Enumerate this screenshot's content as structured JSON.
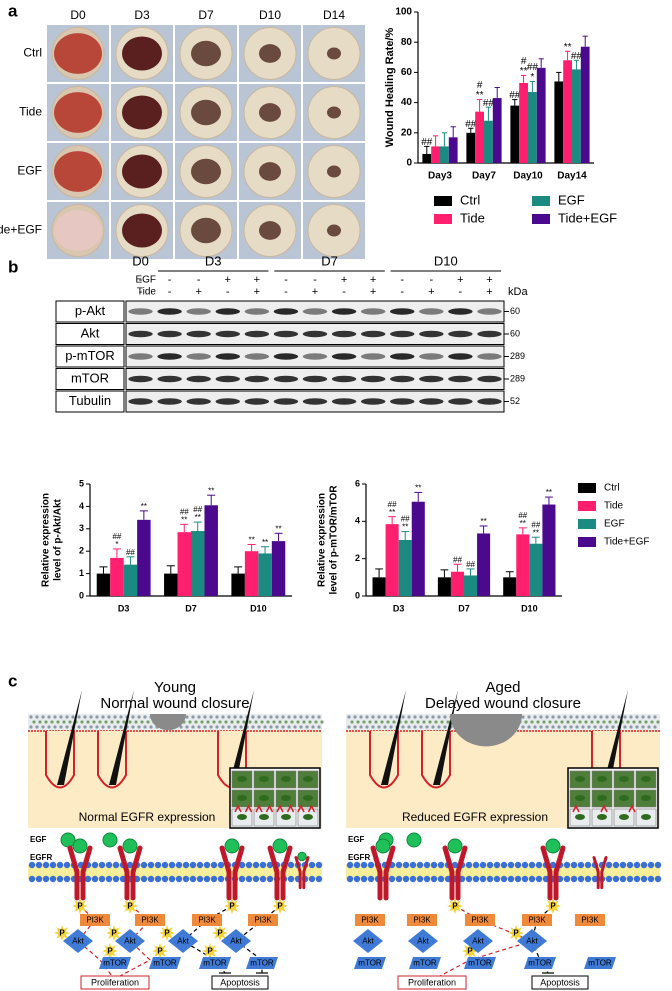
{
  "panels": [
    "a",
    "b",
    "c"
  ],
  "photos": {
    "columns": [
      "D0",
      "D3",
      "D7",
      "D10",
      "D14"
    ],
    "rows": [
      "Ctrl",
      "Tide",
      "EGF",
      "Tide+EGF"
    ]
  },
  "blot": {
    "groups": [
      "D0",
      "D3",
      "D7",
      "D10"
    ],
    "treatments": [
      {
        "name": "EGF",
        "signs": [
          "-",
          "-",
          "-",
          "+",
          "+",
          "-",
          "-",
          "+",
          "+",
          "-",
          "-",
          "+",
          "+"
        ]
      },
      {
        "name": "Tide",
        "signs": [
          "-",
          "-",
          "+",
          "-",
          "+",
          "-",
          "+",
          "-",
          "+",
          "-",
          "+",
          "-",
          "+"
        ]
      }
    ],
    "unit": "kDa",
    "rows": [
      {
        "name": "p-Akt",
        "marker": "60"
      },
      {
        "name": "Akt",
        "marker": "60"
      },
      {
        "name": "p-mTOR",
        "marker": "289"
      },
      {
        "name": "mTOR",
        "marker": "289"
      },
      {
        "name": "Tubulin",
        "marker": "52"
      }
    ]
  },
  "chart_data": [
    {
      "type": "bar",
      "ylabel": [
        "Wound Healing Rate/%"
      ],
      "categories": [
        "Day3",
        "Day7",
        "Day10",
        "Day14"
      ],
      "ylim": [
        0,
        100
      ],
      "yticks": [
        0,
        20,
        40,
        60,
        80,
        100
      ],
      "legend": "bottom",
      "series": [
        {
          "name": "Ctrl",
          "color": "#000000",
          "values": [
            6,
            20,
            38,
            54
          ],
          "errors": [
            5,
            3,
            4,
            6
          ],
          "labels": [
            [
              "##"
            ],
            [
              "##"
            ],
            [
              "##"
            ],
            null
          ]
        },
        {
          "name": "Tide",
          "color": "#ff1f6e",
          "values": [
            11,
            34,
            53,
            68
          ],
          "errors": [
            7,
            8,
            5,
            6
          ],
          "labels": [
            null,
            [
              "#",
              "**"
            ],
            [
              "#",
              "**"
            ],
            [
              "**"
            ]
          ]
        },
        {
          "name": "EGF",
          "color": "#1b8a80",
          "values": [
            11,
            28,
            47,
            62
          ],
          "errors": [
            9,
            9,
            7,
            6
          ],
          "labels": [
            null,
            [
              "##"
            ],
            [
              "##",
              "*"
            ],
            [
              "##"
            ]
          ]
        },
        {
          "name": "Tide+EGF",
          "color": "#4b0a8e",
          "values": [
            17,
            43,
            63,
            77
          ],
          "errors": [
            7,
            7,
            6,
            7
          ],
          "labels": [
            null,
            null,
            null,
            null
          ]
        }
      ]
    },
    {
      "type": "bar",
      "ylabel": [
        "Relative expression",
        "level of p-Akt/Akt"
      ],
      "categories": [
        "D3",
        "D7",
        "D10"
      ],
      "ylim": [
        0,
        5
      ],
      "yticks": [
        0,
        1,
        2,
        3,
        4,
        5
      ],
      "legend": null,
      "series": [
        {
          "name": "Ctrl",
          "color": "#000000",
          "values": [
            1.0,
            1.0,
            1.0
          ],
          "errors": [
            0.3,
            0.35,
            0.3
          ],
          "labels": [
            null,
            null,
            null
          ]
        },
        {
          "name": "Tide",
          "color": "#ff1f6e",
          "values": [
            1.7,
            2.85,
            2.0
          ],
          "errors": [
            0.4,
            0.35,
            0.3
          ],
          "labels": [
            [
              "##",
              "*"
            ],
            [
              "##",
              "**"
            ],
            [
              "**"
            ]
          ]
        },
        {
          "name": "EGF",
          "color": "#1b8a80",
          "values": [
            1.4,
            2.9,
            1.9
          ],
          "errors": [
            0.35,
            0.4,
            0.3
          ],
          "labels": [
            [
              "##"
            ],
            [
              "##",
              "**"
            ],
            [
              "**"
            ]
          ]
        },
        {
          "name": "Tide+EGF",
          "color": "#4b0a8e",
          "values": [
            3.4,
            4.05,
            2.45
          ],
          "errors": [
            0.4,
            0.45,
            0.35
          ],
          "labels": [
            [
              "**"
            ],
            [
              "**"
            ],
            [
              "**"
            ]
          ]
        }
      ]
    },
    {
      "type": "bar",
      "ylabel": [
        "Relative expression",
        "level of p-mTOR/mTOR"
      ],
      "categories": [
        "D3",
        "D7",
        "D10"
      ],
      "ylim": [
        0,
        6
      ],
      "yticks": [
        0,
        2,
        4,
        6
      ],
      "legend": "right",
      "series": [
        {
          "name": "Ctrl",
          "color": "#000000",
          "values": [
            1.0,
            1.0,
            1.0
          ],
          "errors": [
            0.45,
            0.4,
            0.3
          ],
          "labels": [
            null,
            null,
            null
          ]
        },
        {
          "name": "Tide",
          "color": "#ff1f6e",
          "values": [
            3.85,
            1.3,
            3.3
          ],
          "errors": [
            0.4,
            0.4,
            0.35
          ],
          "labels": [
            [
              "##",
              "**"
            ],
            [
              "##"
            ],
            [
              "##",
              "**"
            ]
          ]
        },
        {
          "name": "EGF",
          "color": "#1b8a80",
          "values": [
            3.0,
            1.1,
            2.8
          ],
          "errors": [
            0.45,
            0.35,
            0.35
          ],
          "labels": [
            [
              "##",
              "**"
            ],
            [
              "##"
            ],
            [
              "##",
              "**"
            ]
          ]
        },
        {
          "name": "Tide+EGF",
          "color": "#4b0a8e",
          "values": [
            5.05,
            3.35,
            4.9
          ],
          "errors": [
            0.5,
            0.4,
            0.4
          ],
          "labels": [
            [
              "**"
            ],
            [
              "**"
            ],
            [
              "**"
            ]
          ]
        }
      ]
    }
  ],
  "diagram": {
    "young": {
      "title": "Young",
      "subtitle": "Normal wound closure",
      "expression": "Normal EGFR expression"
    },
    "aged": {
      "title": "Aged",
      "subtitle": "Delayed wound closure",
      "expression": "Reduced EGFR expression"
    },
    "labels": {
      "egf": "EGF",
      "egfr": "EGFR",
      "p": "P",
      "pi3k": "PI3K",
      "akt": "Akt",
      "mtor": "mTOR",
      "proliferation": "Proliferation",
      "apoptosis": "Apoptosis"
    }
  }
}
